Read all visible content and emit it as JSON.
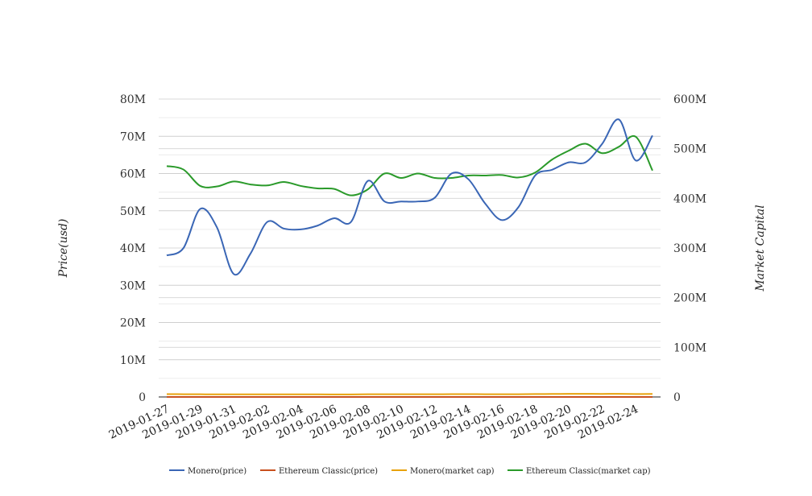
{
  "chart_data": {
    "type": "line",
    "title": "",
    "ylabel": "Price(usd)",
    "y2label": "Market Capital",
    "ylim": [
      0,
      80000000
    ],
    "y2lim": [
      0,
      600000000
    ],
    "yticks": [
      "0",
      "10M",
      "20M",
      "30M",
      "40M",
      "50M",
      "60M",
      "70M",
      "80M"
    ],
    "y2ticks": [
      "0",
      "100M",
      "200M",
      "300M",
      "400M",
      "500M",
      "600M"
    ],
    "x": [
      "2019-01-27",
      "2019-01-28",
      "2019-01-29",
      "2019-01-30",
      "2019-01-31",
      "2019-02-01",
      "2019-02-02",
      "2019-02-03",
      "2019-02-04",
      "2019-02-05",
      "2019-02-06",
      "2019-02-07",
      "2019-02-08",
      "2019-02-09",
      "2019-02-10",
      "2019-02-11",
      "2019-02-12",
      "2019-02-13",
      "2019-02-14",
      "2019-02-15",
      "2019-02-16",
      "2019-02-17",
      "2019-02-18",
      "2019-02-19",
      "2019-02-20",
      "2019-02-21",
      "2019-02-22",
      "2019-02-23",
      "2019-02-24",
      "2019-02-25"
    ],
    "xticks": [
      "2019-01-27",
      "2019-01-29",
      "2019-01-31",
      "2019-02-02",
      "2019-02-04",
      "2019-02-06",
      "2019-02-08",
      "2019-02-10",
      "2019-02-12",
      "2019-02-14",
      "2019-02-16",
      "2019-02-18",
      "2019-02-20",
      "2019-02-22",
      "2019-02-24"
    ],
    "legend_position": "bottom",
    "grid": true,
    "series": [
      {
        "name": "Monero(price)",
        "axis": "left",
        "color": "#3a66b5",
        "values": [
          38000000,
          40000000,
          50500000,
          45500000,
          33000000,
          38500000,
          47000000,
          45200000,
          45000000,
          46000000,
          48000000,
          47000000,
          58000000,
          52500000,
          52500000,
          52500000,
          53500000,
          60000000,
          58500000,
          52000000,
          47500000,
          51000000,
          59500000,
          61000000,
          63000000,
          63000000,
          68000000,
          74500000,
          63500000,
          70200000
        ]
      },
      {
        "name": "Ethereum Classic(price)",
        "axis": "left",
        "color": "#c8501e",
        "values": [
          4.3,
          4.1,
          4.0,
          3.9,
          3.6,
          3.7,
          3.8,
          3.8,
          3.7,
          3.6,
          3.5,
          3.4,
          3.9,
          4.2,
          4.1,
          4.2,
          4.1,
          4.0,
          4.1,
          4.2,
          4.1,
          4.1,
          4.4,
          4.5,
          4.6,
          4.7,
          4.5,
          4.6,
          4.4,
          4.2
        ]
      },
      {
        "name": "Monero(market cap)",
        "axis": "left",
        "color": "#e8a20c",
        "values": [
          750000,
          740000,
          720000,
          700000,
          690000,
          690000,
          700000,
          700000,
          690000,
          690000,
          680000,
          670000,
          730000,
          720000,
          720000,
          720000,
          720000,
          760000,
          750000,
          740000,
          730000,
          740000,
          790000,
          800000,
          830000,
          830000,
          820000,
          840000,
          790000,
          800000
        ]
      },
      {
        "name": "Ethereum Classic(market cap)",
        "axis": "right",
        "color": "#2a9a2a",
        "values": [
          465000000,
          458000000,
          425000000,
          424000000,
          434000000,
          428000000,
          426000000,
          433000000,
          425000000,
          420000000,
          419000000,
          406000000,
          418000000,
          450000000,
          441000000,
          450000000,
          441000000,
          441000000,
          446000000,
          446000000,
          447000000,
          442000000,
          452000000,
          478000000,
          496000000,
          510000000,
          491000000,
          504000000,
          524000000,
          456000000
        ]
      }
    ]
  }
}
